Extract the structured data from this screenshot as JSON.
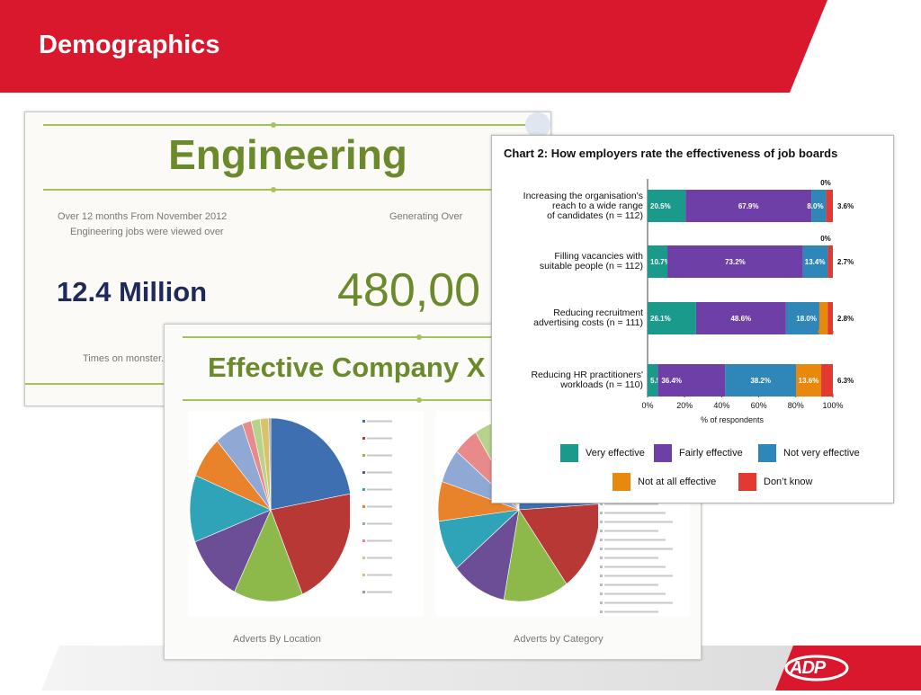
{
  "slide": {
    "title": "Demographics",
    "brand": "ADP",
    "accent": "#d9182d"
  },
  "engineering": {
    "title": "Engineering",
    "left_text_1": "Over 12 months From November 2012",
    "left_text_2": "Engineering jobs were viewed over",
    "right_text": "Generating Over",
    "big_left": "12.4 Million",
    "big_right": "480,00",
    "bottom_text": "Times on monster.c"
  },
  "effective": {
    "title": "Effective Company X",
    "caption_left": "Adverts By Location",
    "caption_right": "Adverts by Category"
  },
  "chart_data": [
    {
      "type": "bar",
      "title": "Chart 2: How employers rate the effectiveness of job boards",
      "xlabel": "% of respondents",
      "xlim": [
        0,
        100
      ],
      "stacked": true,
      "orientation": "horizontal",
      "categories": [
        "Increasing the organisation's reach to a wide range of candidates (n = 112)",
        "Filling vacancies with suitable people (n = 112)",
        "Reducing recruitment advertising costs (n = 111)",
        "Reducing HR practitioners' workloads (n = 110)"
      ],
      "category_lines": [
        [
          "Increasing the organisation's",
          "reach to a wide range",
          "of candidates (n = 112)"
        ],
        [
          "Filling vacancies with",
          "suitable people (n = 112)"
        ],
        [
          "Reducing recruitment",
          "advertising costs (n = 111)"
        ],
        [
          "Reducing HR practitioners'",
          "workloads (n = 110)"
        ]
      ],
      "series": [
        {
          "name": "Very effective",
          "color": "#1a9a8a",
          "values": [
            20.5,
            10.7,
            26.1,
            5.5
          ]
        },
        {
          "name": "Fairly effective",
          "color": "#6f3fa8",
          "values": [
            67.9,
            73.2,
            48.6,
            36.4
          ]
        },
        {
          "name": "Not very effective",
          "color": "#2f86b8",
          "values": [
            8.0,
            13.4,
            18.0,
            38.2
          ]
        },
        {
          "name": "Not at all effective",
          "color": "#e8890d",
          "values": [
            0,
            0,
            4.5,
            13.6
          ]
        },
        {
          "name": "Don't know",
          "color": "#e23a30",
          "values": [
            3.6,
            2.7,
            2.8,
            6.3
          ]
        }
      ],
      "bar_labels": [
        [
          "20.5%",
          "67.9%",
          "8.0%",
          "0%",
          "3.6%"
        ],
        [
          "10.7%",
          "73.2%",
          "13.4%",
          "0%",
          "2.7%"
        ],
        [
          "26.1%",
          "48.6%",
          "18.0%",
          "4.5%",
          "2.8%"
        ],
        [
          "5.5%",
          "36.4%",
          "38.2%",
          "13.6%",
          "6.3%"
        ]
      ],
      "x_ticks": [
        "0%",
        "20%",
        "40%",
        "60%",
        "80%",
        "100%"
      ],
      "legend": [
        "Very effective",
        "Fairly effective",
        "Not very effective",
        "Not at all effective",
        "Don’t know"
      ],
      "legend_position": "bottom"
    },
    {
      "type": "pie",
      "title": "",
      "caption": "Adverts By Location",
      "values": [
        22.2,
        21.4,
        13.8,
        11.9,
        11.8,
        7.4,
        5.8,
        1.8,
        1.8,
        1.7,
        0.4
      ],
      "colors": [
        "#3e6fb0",
        "#b83835",
        "#8db84a",
        "#6c4e96",
        "#2fa3b8",
        "#e9832b",
        "#8fa8d4",
        "#e88a8a",
        "#b6d28b",
        "#d8c36a",
        "#9b9b9b"
      ]
    },
    {
      "type": "pie",
      "title": "",
      "caption": "Adverts by Category",
      "values": [
        24,
        16,
        13,
        11,
        9,
        7,
        6,
        5,
        4,
        3,
        2
      ],
      "colors": [
        "#3e6fb0",
        "#b83835",
        "#8db84a",
        "#6c4e96",
        "#2fa3b8",
        "#e9832b",
        "#8fa8d4",
        "#e88a8a",
        "#b6d28b",
        "#d8c36a",
        "#c04f8a"
      ]
    }
  ]
}
